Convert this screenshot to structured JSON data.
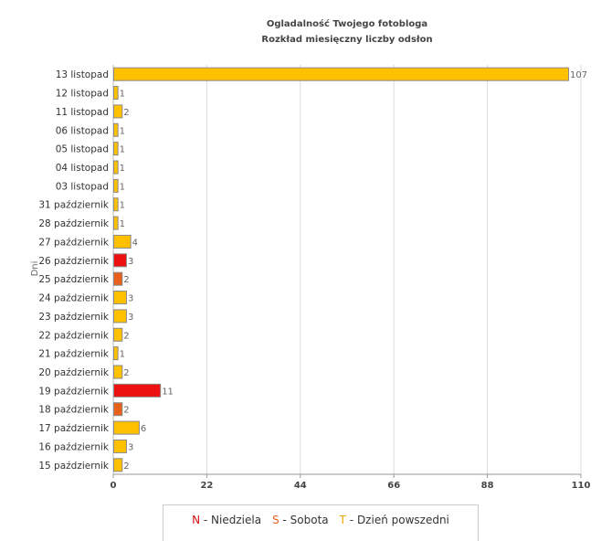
{
  "chart_data": {
    "type": "bar",
    "orientation": "horizontal",
    "title": "Ogladalność Twojego fotobloga",
    "subtitle": "Rozkład miesięczny liczby odsłon",
    "ylabel": "Dni",
    "xlabel": "",
    "xlim": [
      0,
      110
    ],
    "xticks": [
      "0",
      "22",
      "44",
      "66",
      "88",
      "110"
    ],
    "grid": true,
    "categories": [
      "13 listopad",
      "12 listopad",
      "11 listopad",
      "06 listopad",
      "05 listopad",
      "04 listopad",
      "03 listopad",
      "31 październik",
      "28 październik",
      "27 październik",
      "26 październik",
      "25 październik",
      "24 październik",
      "23 październik",
      "22 październik",
      "21 październik",
      "20 październik",
      "19 październik",
      "18 październik",
      "17 październik",
      "16 październik",
      "15 październik"
    ],
    "values": [
      107,
      1,
      2,
      1,
      1,
      1,
      1,
      1,
      1,
      4,
      3,
      2,
      3,
      3,
      2,
      1,
      2,
      11,
      2,
      6,
      3,
      2
    ],
    "day_types": [
      "T",
      "T",
      "T",
      "T",
      "T",
      "T",
      "T",
      "T",
      "T",
      "T",
      "N",
      "S",
      "T",
      "T",
      "T",
      "T",
      "T",
      "N",
      "S",
      "T",
      "T",
      "T"
    ],
    "colors": {
      "N": "#ee1111",
      "S": "#e8611a",
      "T": "#ffc000"
    },
    "legend": [
      {
        "code": "N",
        "label": " - Niedziela",
        "color": "#dd1111"
      },
      {
        "code": "S",
        "label": " - Sobota",
        "color": "#e8611a"
      },
      {
        "code": "T",
        "label": " - Dzień powszedni",
        "color": "#f0a800"
      }
    ]
  }
}
